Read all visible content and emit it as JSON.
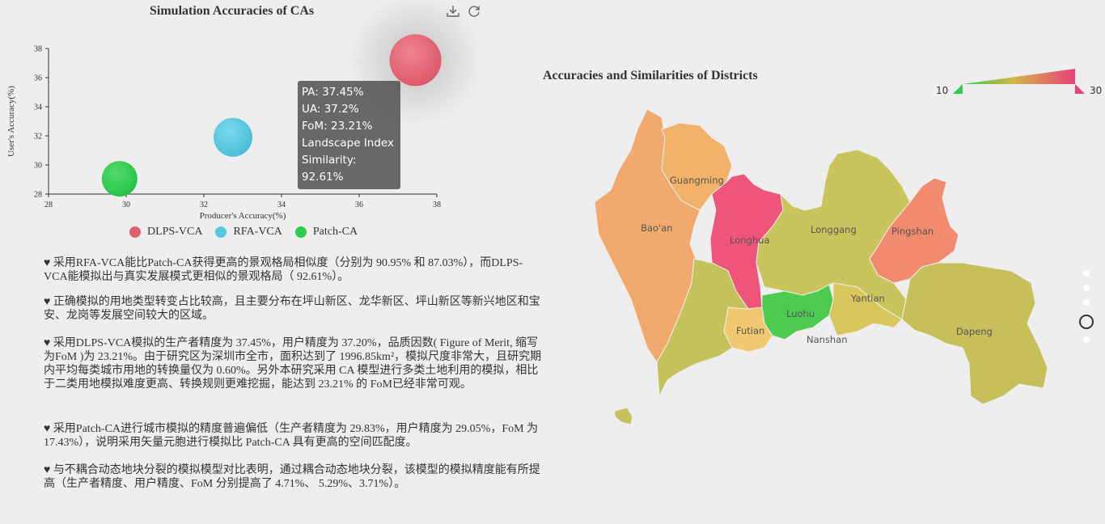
{
  "scatter": {
    "title": "Simulation Accuracies of CAs",
    "toolbox": {
      "download_icon": "download-icon",
      "refresh_icon": "refresh-icon"
    },
    "tooltip": {
      "pa": "PA: 37.45%",
      "ua": "UA: 37.2%",
      "fom": "FoM: 23.21%",
      "li": "Landscape Index",
      "sim": "Similarity: 92.61%"
    },
    "legend": [
      {
        "label": "DLPS-VCA",
        "color": "#e0606f"
      },
      {
        "label": "RFA-VCA",
        "color": "#55c8e0"
      },
      {
        "label": "Patch-CA",
        "color": "#2ecc4f"
      }
    ]
  },
  "chart_data": {
    "type": "scatter",
    "xlabel": "Producer's Accuracy(%)",
    "ylabel": "User's Accuracy(%)",
    "xlim": [
      28,
      38
    ],
    "ylim": [
      28,
      38
    ],
    "xticks": [
      "28",
      "30",
      "32",
      "34",
      "36",
      "38"
    ],
    "yticks": [
      "28",
      "30",
      "32",
      "34",
      "36",
      "38"
    ],
    "series": [
      {
        "name": "DLPS-VCA",
        "x": 37.45,
        "y": 37.2,
        "color": "#e0606f"
      },
      {
        "name": "RFA-VCA",
        "x": 32.75,
        "y": 31.9,
        "color": "#55c8e0"
      },
      {
        "name": "Patch-CA",
        "x": 29.83,
        "y": 29.05,
        "color": "#2ecc4f"
      }
    ]
  },
  "notes": [
    "♥ 采用RFA-VCA能比Patch-CA获得更高的景观格局相似度（分别为 90.95% 和 87.03%），而DLPS-VCA能模拟出与真实发展模式更相似的景观格局（ 92.61%）。",
    "♥ 正确模拟的用地类型转变占比较高，且主要分布在坪山新区、龙华新区、坪山新区等新兴地区和宝安、龙岗等发展空间较大的区域。",
    "♥ 采用DLPS-VCA模拟的生产者精度为 37.45%，用户精度为 37.20%，品质因数( Figure of Merit, 缩写为FoM )为 23.21%。由于研究区为深圳市全市，面积达到了 1996.85km²，模拟尺度非常大，且研究期内平均每类城市用地的转换量仅为 0.60%。另外本研究采用 CA 模型进行多类土地利用的模拟，相比于二类用地模拟难度更高、转换规则更难挖掘，能达到 23.21% 的 FoM已经非常可观。",
    "♥ 采用Patch-CA进行城市模拟的精度普遍偏低（生产者精度为 29.83%，用户精度为 29.05%，FoM 为 17.43%），说明采用矢量元胞进行模拟比 Patch-CA 具有更高的空间匹配度。",
    "♥ 与不耦合动态地块分裂的模拟模型对比表明，通过耦合动态地块分裂，该模型的模拟精度能有所提高（生产者精度、用户精度、FoM 分别提高了 4.71%、 5.29%、3.71%）。"
  ],
  "map": {
    "title": "Accuracies and Similarities of Districts",
    "scale_min": "10",
    "scale_max": "30",
    "scale_colors": [
      "#2ecc4f",
      "#d4b64a",
      "#e8407a"
    ],
    "districts": [
      {
        "name": "Guangming",
        "color": "#f2b26a"
      },
      {
        "name": "Bao'an",
        "color": "#f2a96e"
      },
      {
        "name": "Longhua",
        "color": "#ee5578"
      },
      {
        "name": "Longgang",
        "color": "#c9c55c"
      },
      {
        "name": "Pingshan",
        "color": "#f28a6e"
      },
      {
        "name": "Yantian",
        "color": "#d9c65c"
      },
      {
        "name": "Futian",
        "color": "#f0c870"
      },
      {
        "name": "Luohu",
        "color": "#4ccb4e"
      },
      {
        "name": "Nanshan",
        "color": "#c4c25a"
      },
      {
        "name": "Dapeng",
        "color": "#c7c05a"
      }
    ]
  }
}
